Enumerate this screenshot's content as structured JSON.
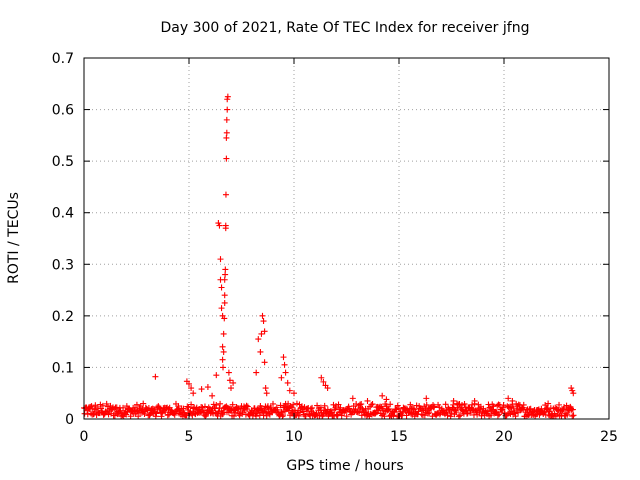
{
  "chart_data": {
    "type": "scatter",
    "title": "Day 300 of 2021, Rate Of TEC Index for receiver jfng",
    "xlabel": "GPS time / hours",
    "ylabel": "ROTI / TECUs",
    "xlim": [
      0,
      25
    ],
    "ylim": [
      0,
      0.7
    ],
    "xticks": [
      "0",
      "5",
      "10",
      "15",
      "20",
      "25"
    ],
    "yticks": [
      "0",
      "0.1",
      "0.2",
      "0.3",
      "0.4",
      "0.5",
      "0.6",
      "0.7"
    ],
    "grid": true,
    "marker": "+",
    "color": "#ff0000",
    "series": [
      {
        "x": [
          3.4,
          4.9,
          5.0,
          5.1,
          5.2,
          5.6,
          5.9,
          6.1,
          6.3,
          6.4,
          6.45,
          6.5,
          6.5,
          6.55,
          6.55,
          6.6,
          6.6,
          6.6,
          6.62,
          6.65,
          6.65,
          6.68,
          6.7,
          6.7,
          6.7,
          6.72,
          6.73,
          6.75,
          6.75,
          6.76,
          6.78,
          6.78,
          6.8,
          6.8,
          6.82,
          6.82,
          6.85,
          6.9,
          6.95,
          7.0,
          7.1,
          8.2,
          8.3,
          8.4,
          8.45,
          8.5,
          8.55,
          8.6,
          8.6,
          8.65,
          8.7,
          9.4,
          9.5,
          9.55,
          9.6,
          9.7,
          9.8,
          10.0,
          11.3,
          11.4,
          11.5,
          11.6,
          12.8,
          13.5,
          14.2,
          14.4,
          16.3,
          17.6,
          18.6,
          20.2,
          20.4,
          22.1,
          23.2,
          23.25,
          23.3
        ],
        "y": [
          0.082,
          0.073,
          0.068,
          0.06,
          0.05,
          0.058,
          0.062,
          0.045,
          0.085,
          0.38,
          0.375,
          0.31,
          0.27,
          0.255,
          0.215,
          0.2,
          0.14,
          0.115,
          0.1,
          0.165,
          0.13,
          0.195,
          0.24,
          0.225,
          0.27,
          0.28,
          0.29,
          0.375,
          0.37,
          0.435,
          0.505,
          0.545,
          0.555,
          0.58,
          0.6,
          0.62,
          0.625,
          0.09,
          0.075,
          0.06,
          0.07,
          0.09,
          0.155,
          0.13,
          0.165,
          0.2,
          0.19,
          0.17,
          0.11,
          0.06,
          0.05,
          0.08,
          0.12,
          0.105,
          0.09,
          0.07,
          0.055,
          0.05,
          0.08,
          0.072,
          0.065,
          0.06,
          0.04,
          0.035,
          0.045,
          0.038,
          0.04,
          0.035,
          0.035,
          0.04,
          0.035,
          0.03,
          0.06,
          0.055,
          0.05
        ],
        "baseline": {
          "x_range": [
            0,
            23.3
          ],
          "y_range": [
            0.005,
            0.03
          ]
        }
      }
    ]
  }
}
